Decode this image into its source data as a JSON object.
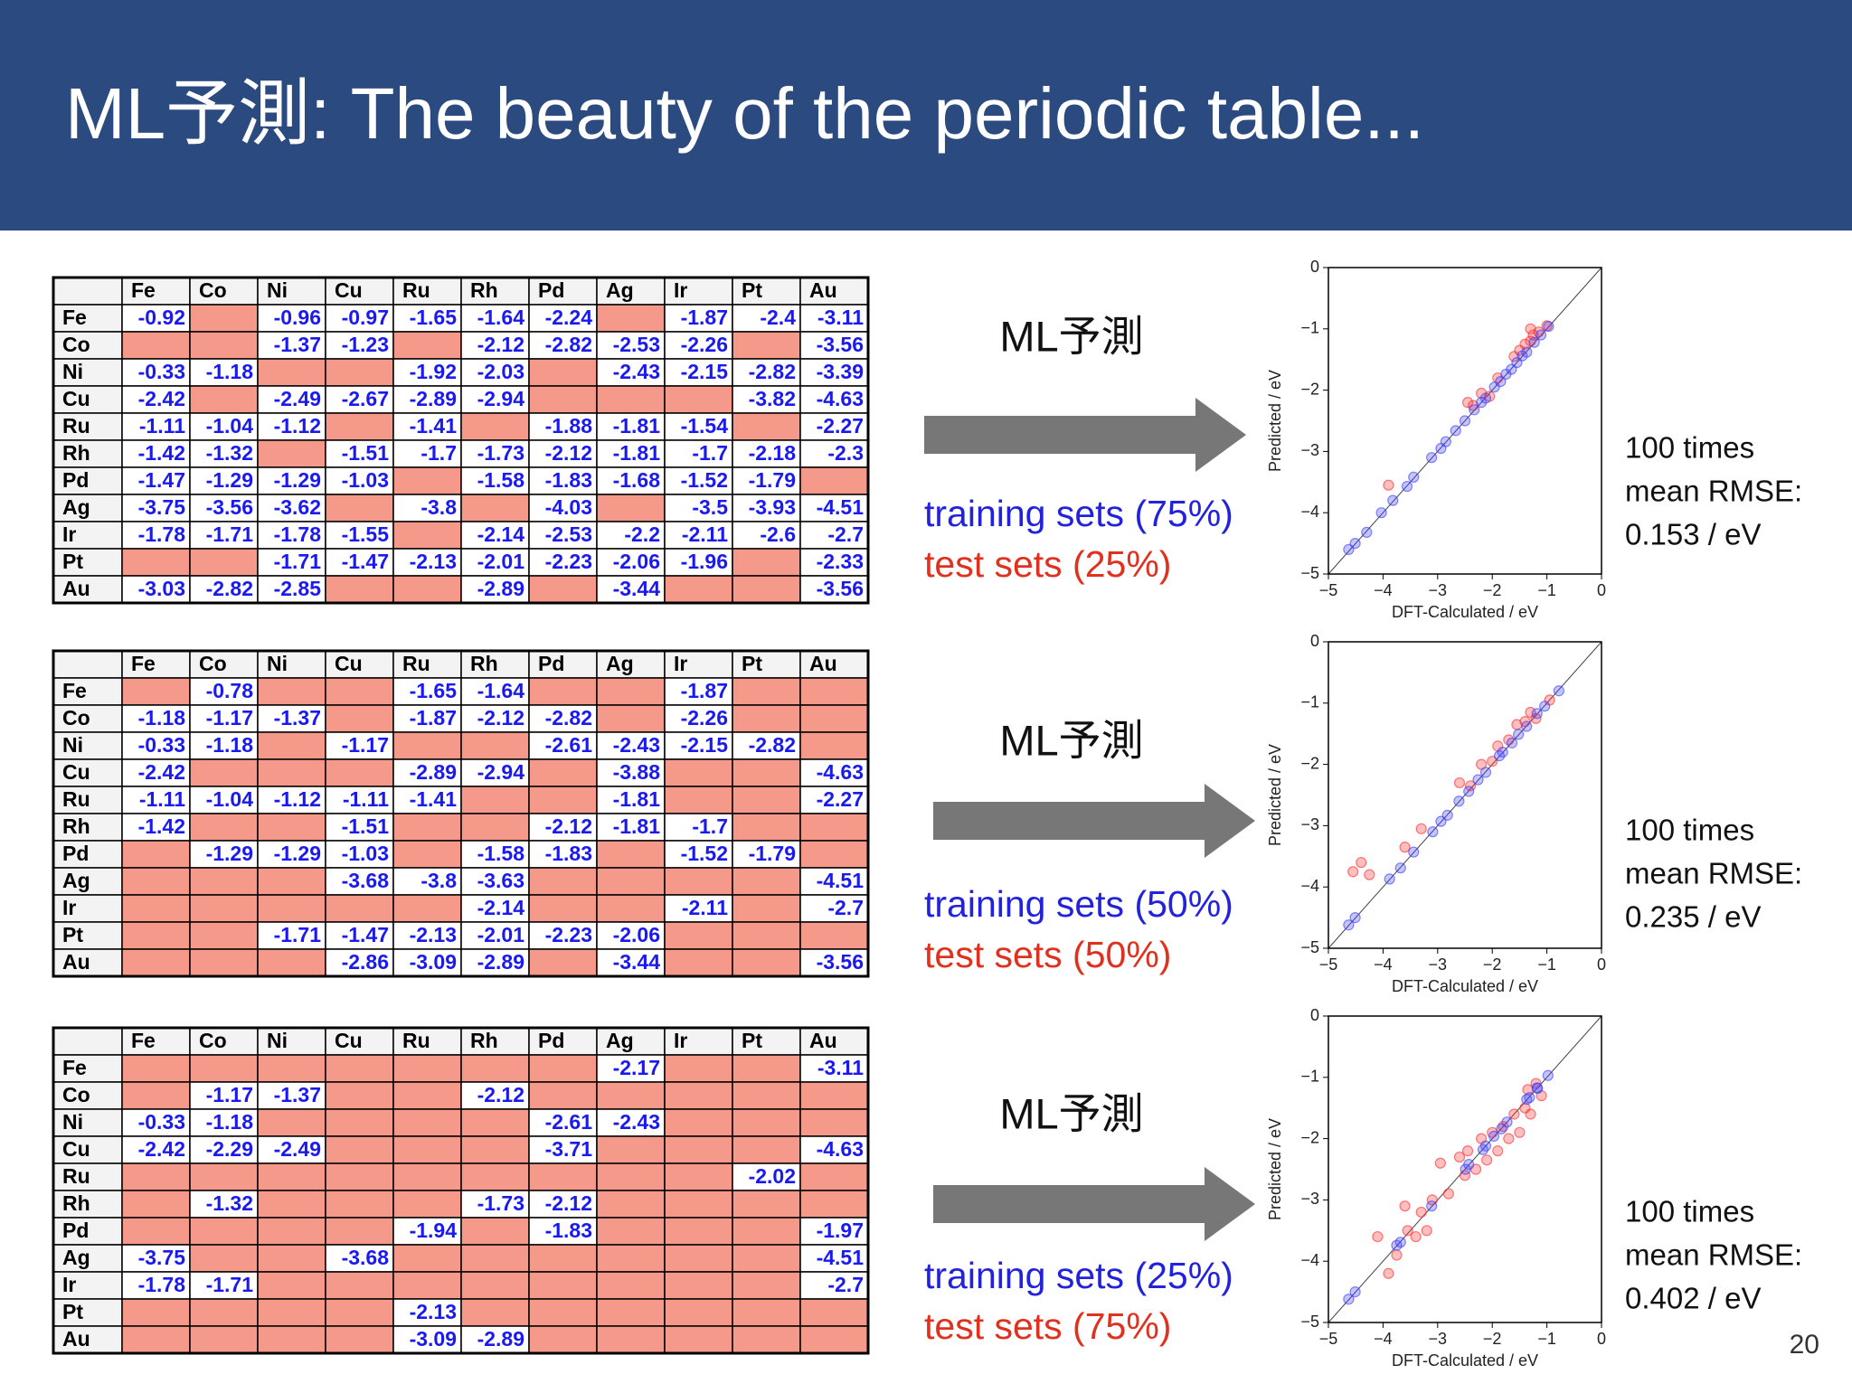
{
  "title": "ML予測: The beauty of the periodic table...",
  "page_number": "20",
  "panels": [
    {
      "table": {
        "columns": [
          "Fe",
          "Co",
          "Ni",
          "Cu",
          "Ru",
          "Rh",
          "Pd",
          "Ag",
          "Ir",
          "Pt",
          "Au"
        ],
        "rows": [
          {
            "label": "Fe",
            "cells": [
              -0.92,
              null,
              -0.96,
              -0.97,
              -1.65,
              -1.64,
              -2.24,
              null,
              -1.87,
              -2.4,
              -3.11
            ]
          },
          {
            "label": "Co",
            "cells": [
              null,
              null,
              -1.37,
              -1.23,
              null,
              -2.12,
              -2.82,
              -2.53,
              -2.26,
              null,
              -3.56
            ]
          },
          {
            "label": "Ni",
            "cells": [
              -0.33,
              -1.18,
              null,
              null,
              -1.92,
              -2.03,
              null,
              -2.43,
              -2.15,
              -2.82,
              -3.39
            ]
          },
          {
            "label": "Cu",
            "cells": [
              -2.42,
              null,
              -2.49,
              -2.67,
              -2.89,
              -2.94,
              null,
              null,
              null,
              -3.82,
              -4.63
            ]
          },
          {
            "label": "Ru",
            "cells": [
              -1.11,
              -1.04,
              -1.12,
              null,
              -1.41,
              null,
              -1.88,
              -1.81,
              -1.54,
              null,
              -2.27
            ]
          },
          {
            "label": "Rh",
            "cells": [
              -1.42,
              -1.32,
              null,
              -1.51,
              -1.7,
              -1.73,
              -2.12,
              -1.81,
              -1.7,
              -2.18,
              -2.3
            ]
          },
          {
            "label": "Pd",
            "cells": [
              -1.47,
              -1.29,
              -1.29,
              -1.03,
              null,
              -1.58,
              -1.83,
              -1.68,
              -1.52,
              -1.79,
              null
            ]
          },
          {
            "label": "Ag",
            "cells": [
              -3.75,
              -3.56,
              -3.62,
              null,
              -3.8,
              null,
              -4.03,
              null,
              -3.5,
              -3.93,
              -4.51
            ]
          },
          {
            "label": "Ir",
            "cells": [
              -1.78,
              -1.71,
              -1.78,
              -1.55,
              null,
              -2.14,
              -2.53,
              -2.2,
              -2.11,
              -2.6,
              -2.7
            ]
          },
          {
            "label": "Pt",
            "cells": [
              null,
              null,
              -1.71,
              -1.47,
              -2.13,
              -2.01,
              -2.23,
              -2.06,
              -1.96,
              null,
              -2.33
            ]
          },
          {
            "label": "Au",
            "cells": [
              -3.03,
              -2.82,
              -2.85,
              null,
              null,
              -2.89,
              null,
              -3.44,
              null,
              null,
              -3.56
            ]
          }
        ]
      },
      "method": "ML予測",
      "training": "training sets (75%)",
      "test": "test sets (25%)",
      "rmse": [
        "100 times",
        "mean RMSE:",
        "0.153 / eV"
      ]
    },
    {
      "table": {
        "columns": [
          "Fe",
          "Co",
          "Ni",
          "Cu",
          "Ru",
          "Rh",
          "Pd",
          "Ag",
          "Ir",
          "Pt",
          "Au"
        ],
        "rows": [
          {
            "label": "Fe",
            "cells": [
              null,
              -0.78,
              null,
              null,
              -1.65,
              -1.64,
              null,
              null,
              -1.87,
              null,
              null
            ]
          },
          {
            "label": "Co",
            "cells": [
              -1.18,
              -1.17,
              -1.37,
              null,
              -1.87,
              -2.12,
              -2.82,
              null,
              -2.26,
              null,
              null
            ]
          },
          {
            "label": "Ni",
            "cells": [
              -0.33,
              -1.18,
              null,
              -1.17,
              null,
              null,
              -2.61,
              -2.43,
              -2.15,
              -2.82,
              null
            ]
          },
          {
            "label": "Cu",
            "cells": [
              -2.42,
              null,
              null,
              null,
              -2.89,
              -2.94,
              null,
              -3.88,
              null,
              null,
              -4.63
            ]
          },
          {
            "label": "Ru",
            "cells": [
              -1.11,
              -1.04,
              -1.12,
              -1.11,
              -1.41,
              null,
              null,
              -1.81,
              null,
              null,
              -2.27
            ]
          },
          {
            "label": "Rh",
            "cells": [
              -1.42,
              null,
              null,
              -1.51,
              null,
              null,
              -2.12,
              -1.81,
              -1.7,
              null,
              null
            ]
          },
          {
            "label": "Pd",
            "cells": [
              null,
              -1.29,
              -1.29,
              -1.03,
              null,
              -1.58,
              -1.83,
              null,
              -1.52,
              -1.79,
              null
            ]
          },
          {
            "label": "Ag",
            "cells": [
              null,
              null,
              null,
              -3.68,
              -3.8,
              -3.63,
              null,
              null,
              null,
              null,
              -4.51
            ]
          },
          {
            "label": "Ir",
            "cells": [
              null,
              null,
              null,
              null,
              null,
              -2.14,
              null,
              null,
              -2.11,
              null,
              -2.7
            ]
          },
          {
            "label": "Pt",
            "cells": [
              null,
              null,
              -1.71,
              -1.47,
              -2.13,
              -2.01,
              -2.23,
              -2.06,
              null,
              null,
              null
            ]
          },
          {
            "label": "Au",
            "cells": [
              null,
              null,
              null,
              -2.86,
              -3.09,
              -2.89,
              null,
              -3.44,
              null,
              null,
              -3.56
            ]
          }
        ]
      },
      "method": "ML予測",
      "training": "training sets (50%)",
      "test": "test sets (50%)",
      "rmse": [
        "100 times",
        "mean RMSE:",
        "0.235 / eV"
      ]
    },
    {
      "table": {
        "columns": [
          "Fe",
          "Co",
          "Ni",
          "Cu",
          "Ru",
          "Rh",
          "Pd",
          "Ag",
          "Ir",
          "Pt",
          "Au"
        ],
        "rows": [
          {
            "label": "Fe",
            "cells": [
              null,
              null,
              null,
              null,
              null,
              null,
              null,
              -2.17,
              null,
              null,
              -3.11
            ]
          },
          {
            "label": "Co",
            "cells": [
              null,
              -1.17,
              -1.37,
              null,
              null,
              -2.12,
              null,
              null,
              null,
              null,
              null
            ]
          },
          {
            "label": "Ni",
            "cells": [
              -0.33,
              -1.18,
              null,
              null,
              null,
              null,
              -2.61,
              -2.43,
              null,
              null,
              null
            ]
          },
          {
            "label": "Cu",
            "cells": [
              -2.42,
              -2.29,
              -2.49,
              null,
              null,
              null,
              -3.71,
              null,
              null,
              null,
              -4.63
            ]
          },
          {
            "label": "Ru",
            "cells": [
              null,
              null,
              null,
              null,
              null,
              null,
              null,
              null,
              null,
              -2.02,
              null
            ]
          },
          {
            "label": "Rh",
            "cells": [
              null,
              -1.32,
              null,
              null,
              null,
              -1.73,
              -2.12,
              null,
              null,
              null,
              null
            ]
          },
          {
            "label": "Pd",
            "cells": [
              null,
              null,
              null,
              null,
              -1.94,
              null,
              -1.83,
              null,
              null,
              null,
              -1.97
            ]
          },
          {
            "label": "Ag",
            "cells": [
              -3.75,
              null,
              null,
              -3.68,
              null,
              null,
              null,
              null,
              null,
              null,
              -4.51
            ]
          },
          {
            "label": "Ir",
            "cells": [
              -1.78,
              -1.71,
              null,
              null,
              null,
              null,
              null,
              null,
              null,
              null,
              -2.7
            ]
          },
          {
            "label": "Pt",
            "cells": [
              null,
              null,
              null,
              null,
              -2.13,
              null,
              null,
              null,
              null,
              null,
              null
            ]
          },
          {
            "label": "Au",
            "cells": [
              null,
              null,
              null,
              null,
              -3.09,
              -2.89,
              null,
              null,
              null,
              null,
              null
            ]
          }
        ]
      },
      "method": "ML予測",
      "training": "training sets (25%)",
      "test": "test sets (75%)",
      "rmse": [
        "100 times",
        "mean RMSE:",
        "0.402 / eV"
      ]
    }
  ],
  "chart_data": [
    {
      "type": "scatter",
      "x_label": "DFT-Calculated / eV",
      "y_label": "Predicted / eV",
      "xlim": [
        -5,
        0
      ],
      "ylim": [
        -5,
        0
      ],
      "xticks": [
        {
          "value": -5,
          "label": "−5"
        },
        {
          "value": -4,
          "label": "−4"
        },
        {
          "value": -3,
          "label": "−3"
        },
        {
          "value": -2,
          "label": "−2"
        },
        {
          "value": -1,
          "label": "−1"
        },
        0
      ],
      "yticks": [
        {
          "value": -5,
          "label": "−5"
        },
        {
          "value": -4,
          "label": "−4"
        },
        {
          "value": -3,
          "label": "−3"
        },
        {
          "value": -2,
          "label": "−2"
        },
        {
          "value": -1,
          "label": "−1"
        },
        0
      ],
      "series": [
        {
          "color": "#ff2a2a",
          "x": [
            -3.9,
            -2.45,
            -2.35,
            -2.2,
            -2.05,
            -1.9,
            -1.6,
            -1.5,
            -1.4,
            -1.3,
            -1.25,
            -1.15,
            -1.0,
            -1.3
          ],
          "values": [
            -3.55,
            -2.2,
            -2.25,
            -2.05,
            -2.1,
            -1.8,
            -1.45,
            -1.35,
            -1.25,
            -1.2,
            -1.1,
            -1.05,
            -0.95,
            -1.0
          ]
        },
        {
          "color": "#3b3bff",
          "x": [
            -4.63,
            -4.51,
            -4.3,
            -4.03,
            -3.82,
            -3.56,
            -3.44,
            -3.11,
            -2.94,
            -2.85,
            -2.67,
            -2.5,
            -2.33,
            -2.2,
            -2.12,
            -1.96,
            -1.85,
            -1.75,
            -1.65,
            -1.55,
            -1.45,
            -1.37,
            -1.23,
            -1.11,
            -0.97
          ],
          "values": [
            -4.6,
            -4.5,
            -4.32,
            -4.0,
            -3.8,
            -3.57,
            -3.42,
            -3.1,
            -2.95,
            -2.84,
            -2.66,
            -2.5,
            -2.32,
            -2.2,
            -2.13,
            -1.95,
            -1.86,
            -1.74,
            -1.66,
            -1.55,
            -1.44,
            -1.38,
            -1.22,
            -1.1,
            -0.96
          ]
        }
      ]
    },
    {
      "type": "scatter",
      "x_label": "DFT-Calculated / eV",
      "y_label": "Predicted / eV",
      "xlim": [
        -5,
        0
      ],
      "ylim": [
        -5,
        0
      ],
      "xticks": [
        {
          "value": -5,
          "label": "−5"
        },
        {
          "value": -4,
          "label": "−4"
        },
        {
          "value": -3,
          "label": "−3"
        },
        {
          "value": -2,
          "label": "−2"
        },
        {
          "value": -1,
          "label": "−1"
        },
        0
      ],
      "yticks": [
        {
          "value": -5,
          "label": "−5"
        },
        {
          "value": -4,
          "label": "−4"
        },
        {
          "value": -3,
          "label": "−3"
        },
        {
          "value": -2,
          "label": "−2"
        },
        {
          "value": -1,
          "label": "−1"
        },
        0
      ],
      "series": [
        {
          "color": "#ff2a2a",
          "x": [
            -4.55,
            -4.4,
            -4.25,
            -3.6,
            -3.3,
            -2.6,
            -2.4,
            -2.2,
            -2.0,
            -1.9,
            -1.7,
            -1.55,
            -1.4,
            -1.3,
            -1.2,
            -0.95
          ],
          "values": [
            -3.75,
            -3.6,
            -3.8,
            -3.35,
            -3.05,
            -2.3,
            -2.35,
            -2.0,
            -1.95,
            -1.7,
            -1.6,
            -1.35,
            -1.3,
            -1.15,
            -1.25,
            -0.95
          ]
        },
        {
          "color": "#3b3bff",
          "x": [
            -4.63,
            -4.51,
            -3.88,
            -3.68,
            -3.44,
            -3.09,
            -2.94,
            -2.82,
            -2.61,
            -2.43,
            -2.26,
            -2.12,
            -1.87,
            -1.81,
            -1.64,
            -1.52,
            -1.37,
            -1.18,
            -1.04,
            -0.78
          ],
          "values": [
            -4.62,
            -4.5,
            -3.87,
            -3.69,
            -3.43,
            -3.1,
            -2.93,
            -2.83,
            -2.6,
            -2.44,
            -2.25,
            -2.13,
            -1.86,
            -1.8,
            -1.65,
            -1.51,
            -1.38,
            -1.17,
            -1.05,
            -0.8
          ]
        }
      ]
    },
    {
      "type": "scatter",
      "x_label": "DFT-Calculated / eV",
      "y_label": "Predicted / eV",
      "xlim": [
        -5,
        0
      ],
      "ylim": [
        -5,
        0
      ],
      "xticks": [
        {
          "value": -5,
          "label": "−5"
        },
        {
          "value": -4,
          "label": "−4"
        },
        {
          "value": -3,
          "label": "−3"
        },
        {
          "value": -2,
          "label": "−2"
        },
        {
          "value": -1,
          "label": "−1"
        },
        0
      ],
      "yticks": [
        {
          "value": -5,
          "label": "−5"
        },
        {
          "value": -4,
          "label": "−4"
        },
        {
          "value": -3,
          "label": "−3"
        },
        {
          "value": -2,
          "label": "−2"
        },
        {
          "value": -1,
          "label": "−1"
        },
        0
      ],
      "series": [
        {
          "color": "#ff2a2a",
          "x": [
            -4.1,
            -3.9,
            -3.75,
            -3.6,
            -3.55,
            -3.3,
            -3.2,
            -3.1,
            -2.95,
            -2.6,
            -2.5,
            -2.45,
            -2.3,
            -2.2,
            -2.1,
            -2.0,
            -1.9,
            -1.8,
            -1.7,
            -1.6,
            -1.5,
            -1.4,
            -1.35,
            -1.3,
            -1.2,
            -1.1,
            -3.4,
            -2.8
          ],
          "values": [
            -3.6,
            -4.2,
            -3.9,
            -3.1,
            -3.5,
            -3.2,
            -3.5,
            -3.0,
            -2.4,
            -2.3,
            -2.6,
            -2.2,
            -2.5,
            -2.0,
            -2.35,
            -1.9,
            -2.2,
            -1.8,
            -2.0,
            -1.6,
            -1.9,
            -1.5,
            -1.2,
            -1.6,
            -1.1,
            -1.3,
            -3.6,
            -2.9
          ]
        },
        {
          "color": "#3b3bff",
          "x": [
            -4.63,
            -4.51,
            -3.75,
            -3.68,
            -3.11,
            -2.49,
            -2.43,
            -2.17,
            -2.12,
            -1.97,
            -1.83,
            -1.73,
            -1.37,
            -1.32,
            -1.18,
            -1.17,
            -0.98
          ],
          "values": [
            -4.62,
            -4.5,
            -3.74,
            -3.69,
            -3.1,
            -2.5,
            -2.42,
            -2.18,
            -2.12,
            -1.96,
            -1.84,
            -1.73,
            -1.36,
            -1.33,
            -1.17,
            -1.18,
            -0.97
          ]
        }
      ]
    }
  ]
}
